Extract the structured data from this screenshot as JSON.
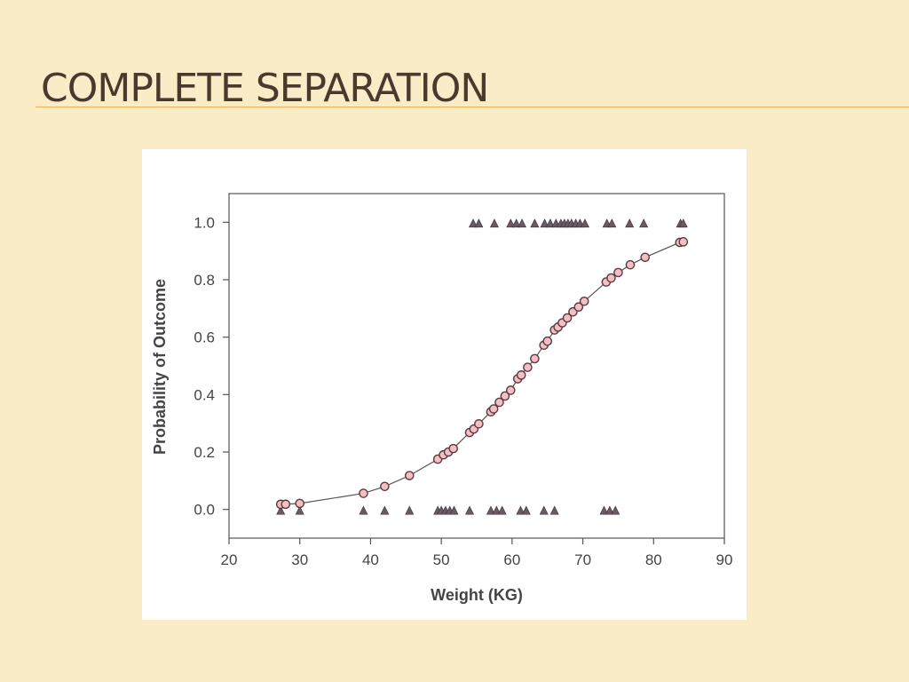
{
  "slide": {
    "title": "COMPLETE SEPARATION"
  },
  "colors": {
    "background": "#fbecc8",
    "title_text": "#4a3a2e",
    "rule": "#e8b15a",
    "circle_fill": "#f2bfc4",
    "circle_stroke": "#5a3a40",
    "triangle_fill": "#6a5a66"
  },
  "chart_data": {
    "type": "scatter",
    "title": "",
    "xlabel": "Weight (KG)",
    "ylabel": "Probability of Outcome",
    "xlim": [
      20,
      90
    ],
    "ylim": [
      -0.1,
      1.1
    ],
    "x_ticks": [
      20,
      30,
      40,
      50,
      60,
      70,
      80,
      90
    ],
    "y_ticks": [
      0.0,
      0.2,
      0.4,
      0.6,
      0.8,
      1.0
    ],
    "y_tick_labels": [
      "0.0",
      "0.2",
      "0.4",
      "0.6",
      "0.8",
      "1.0"
    ],
    "grid": false,
    "legend": "none",
    "series": [
      {
        "kind": "observed-outcome",
        "marker": "triangle",
        "points": [
          [
            27.3,
            0
          ],
          [
            30,
            0
          ],
          [
            39,
            0
          ],
          [
            42,
            0
          ],
          [
            45.5,
            0
          ],
          [
            49.5,
            0
          ],
          [
            50,
            0
          ],
          [
            50.6,
            0
          ],
          [
            51.2,
            0
          ],
          [
            51.8,
            0
          ],
          [
            54,
            0
          ],
          [
            57,
            0
          ],
          [
            57.8,
            0
          ],
          [
            58.6,
            0
          ],
          [
            61.2,
            0
          ],
          [
            62,
            0
          ],
          [
            64.5,
            0
          ],
          [
            66,
            0
          ],
          [
            73,
            0
          ],
          [
            73.8,
            0
          ],
          [
            74.6,
            0
          ],
          [
            54.5,
            1
          ],
          [
            55.3,
            1
          ],
          [
            57.5,
            1
          ],
          [
            59.8,
            1
          ],
          [
            60.6,
            1
          ],
          [
            61.4,
            1
          ],
          [
            63.2,
            1
          ],
          [
            64.6,
            1
          ],
          [
            65.4,
            1
          ],
          [
            66.2,
            1
          ],
          [
            66.9,
            1
          ],
          [
            67.4,
            1
          ],
          [
            67.9,
            1
          ],
          [
            68.4,
            1
          ],
          [
            69,
            1
          ],
          [
            69.6,
            1
          ],
          [
            70.3,
            1
          ],
          [
            73.4,
            1
          ],
          [
            74.1,
            1
          ],
          [
            76.6,
            1
          ],
          [
            78.6,
            1
          ],
          [
            83.8,
            1
          ],
          [
            84.2,
            1
          ]
        ]
      },
      {
        "kind": "fitted-probability",
        "marker": "circle",
        "points": [
          [
            27.3,
            0.018
          ],
          [
            28,
            0.018
          ],
          [
            30,
            0.021
          ],
          [
            39,
            0.056
          ],
          [
            42,
            0.08
          ],
          [
            45.5,
            0.118
          ],
          [
            49.5,
            0.175
          ],
          [
            50.3,
            0.19
          ],
          [
            51,
            0.2
          ],
          [
            51.7,
            0.212
          ],
          [
            54,
            0.268
          ],
          [
            54.6,
            0.28
          ],
          [
            55.3,
            0.298
          ],
          [
            57,
            0.34
          ],
          [
            57.4,
            0.35
          ],
          [
            58.2,
            0.373
          ],
          [
            59,
            0.395
          ],
          [
            59.8,
            0.415
          ],
          [
            60.8,
            0.455
          ],
          [
            61.3,
            0.468
          ],
          [
            62.2,
            0.495
          ],
          [
            63.2,
            0.525
          ],
          [
            64.5,
            0.572
          ],
          [
            65,
            0.586
          ],
          [
            66,
            0.625
          ],
          [
            66.5,
            0.635
          ],
          [
            67.1,
            0.65
          ],
          [
            67.8,
            0.667
          ],
          [
            68.6,
            0.688
          ],
          [
            69.4,
            0.705
          ],
          [
            70.2,
            0.725
          ],
          [
            73.3,
            0.792
          ],
          [
            74,
            0.806
          ],
          [
            75,
            0.825
          ],
          [
            76.7,
            0.852
          ],
          [
            78.8,
            0.878
          ],
          [
            83.7,
            0.93
          ],
          [
            84.2,
            0.932
          ]
        ]
      }
    ]
  }
}
